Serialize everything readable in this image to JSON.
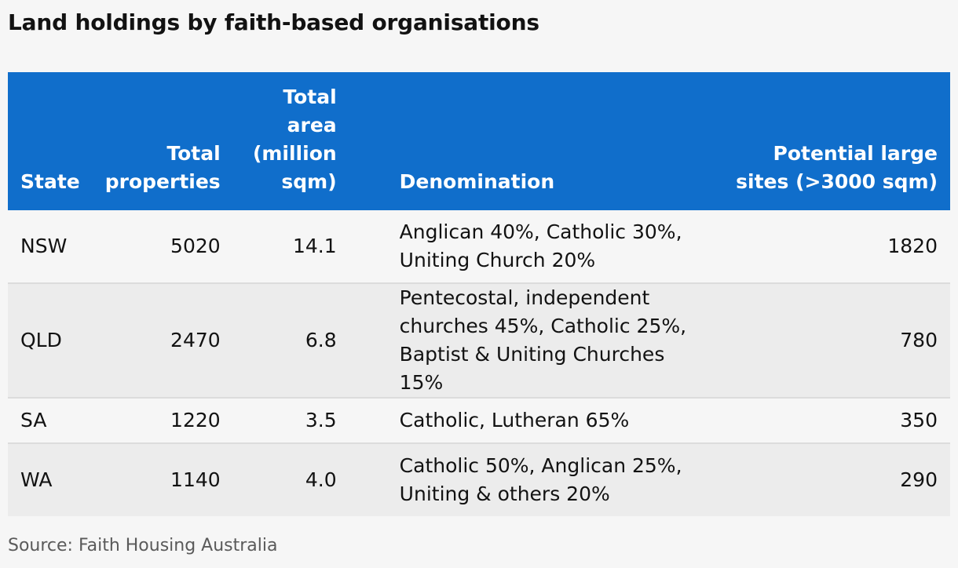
{
  "title": "Land holdings by faith-based organisations",
  "table": {
    "headers": {
      "state": "State",
      "total_properties": "Total properties",
      "total_area": "Total area (million sqm)",
      "denomination": "Denomination",
      "large_sites": "Potential large sites (>3000 sqm)"
    },
    "rows": [
      {
        "state": "NSW",
        "total_properties": "5020",
        "total_area": "14.1",
        "denomination": "Anglican 40%, Catholic 30%, Uniting Church 20%",
        "large_sites": "1820"
      },
      {
        "state": "QLD",
        "total_properties": "2470",
        "total_area": "6.8",
        "denomination": "Pentecostal, independent churches 45%, Catholic 25%, Baptist & Uniting Churches 15%",
        "large_sites": "780"
      },
      {
        "state": "SA",
        "total_properties": "1220",
        "total_area": "3.5",
        "denomination": "Catholic, Lutheran 65%",
        "large_sites": "350"
      },
      {
        "state": "WA",
        "total_properties": "1140",
        "total_area": "4.0",
        "denomination": "Catholic 50%, Anglican 25%, Uniting & others 20%",
        "large_sites": "290"
      }
    ]
  },
  "source": "Source: Faith Housing Australia",
  "colors": {
    "header_bg": "#106ecb",
    "header_text": "#ffffff",
    "row_alt_bg": "#ececec",
    "page_bg": "#f6f6f6"
  }
}
